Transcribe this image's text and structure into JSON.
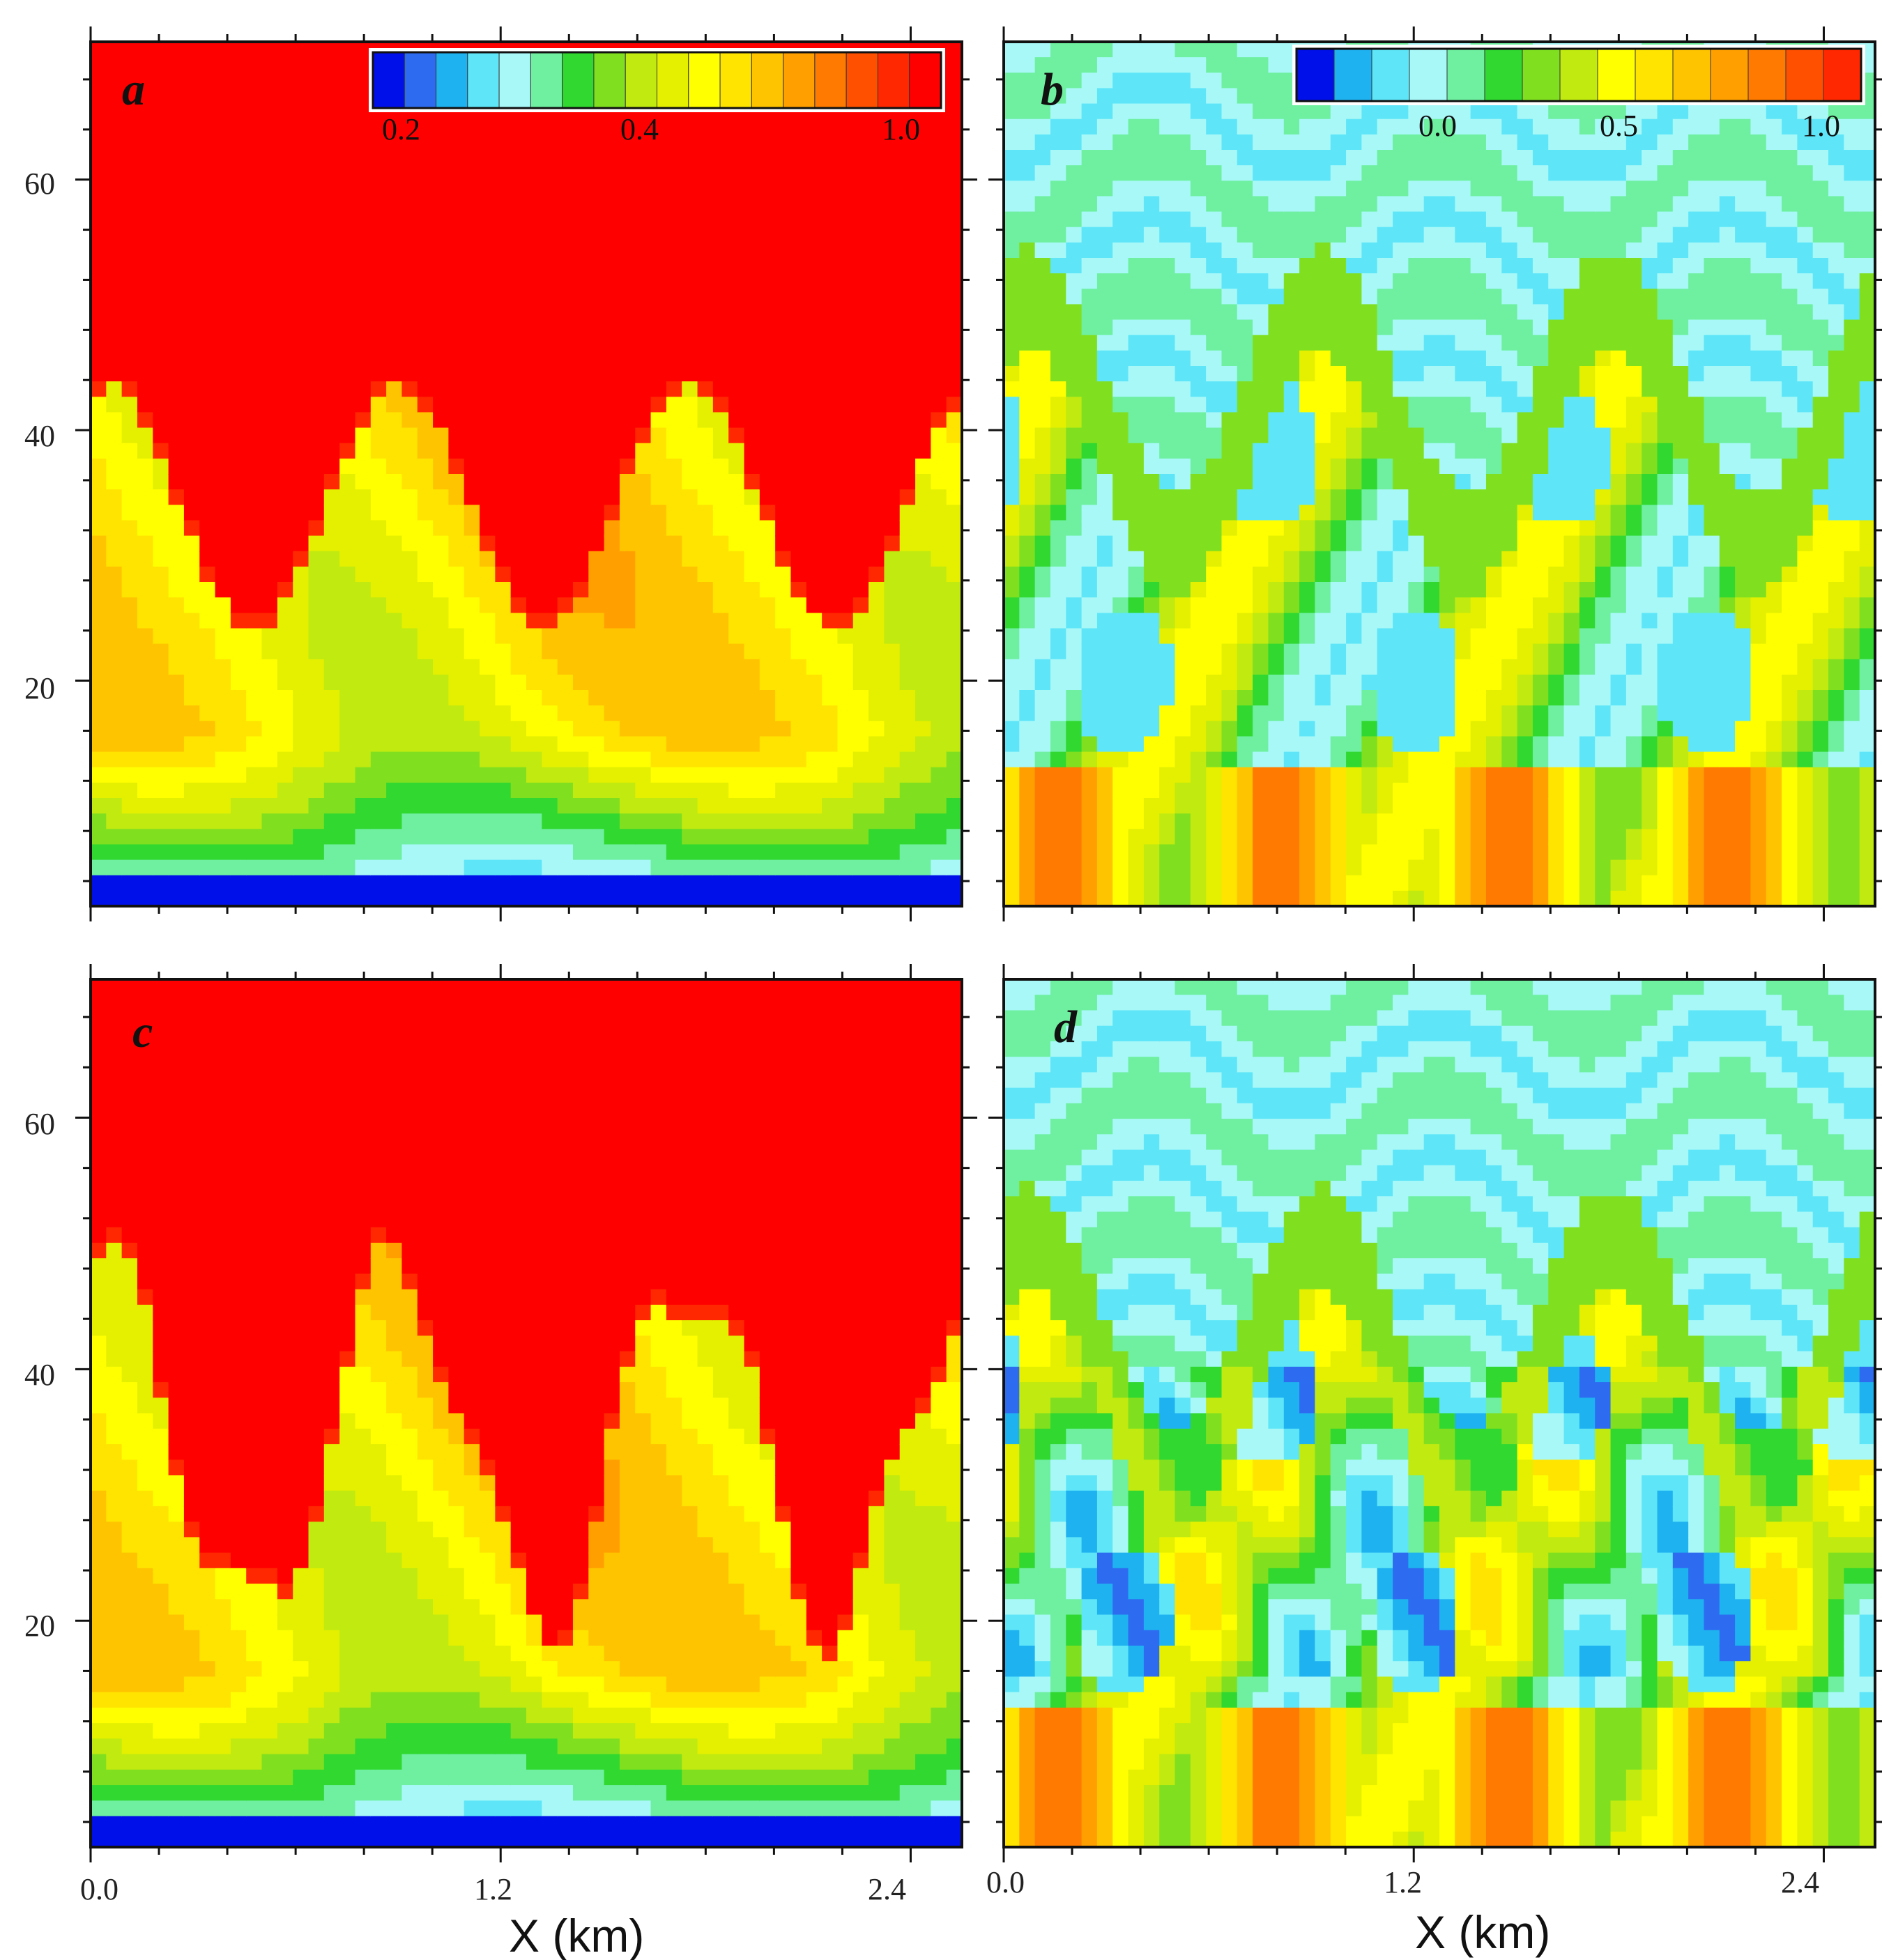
{
  "chart_data": [
    {
      "panel": "a",
      "type": "heatmap",
      "xlabel": "",
      "xlim": [
        0.0,
        2.55
      ],
      "ylim": [
        2,
        71
      ],
      "x_ticks": [
        "",
        "",
        ""
      ],
      "y_ticks": [
        "60",
        "40",
        "20"
      ],
      "y_tick_values": [
        60,
        40,
        20
      ],
      "colorbar": {
        "colors": [
          "#0010e8",
          "#2d6cf0",
          "#1fb2f0",
          "#5ee6f8",
          "#a8f8f8",
          "#6ef0a0",
          "#30d830",
          "#80e020",
          "#c0ea10",
          "#e4f000",
          "#ffff00",
          "#ffe400",
          "#ffc400",
          "#ffa000",
          "#ff7a00",
          "#ff5000",
          "#ff2800",
          "#ff0000"
        ],
        "tick_labels": [
          "0.2",
          "0.4",
          "1.0"
        ],
        "tick_values": [
          0.2,
          0.4,
          1.0
        ]
      },
      "field": {
        "kind": "a",
        "waves": 3,
        "amplitude": 10,
        "center": 32,
        "shear_tilt": 0
      }
    },
    {
      "panel": "b",
      "type": "heatmap",
      "xlabel": "",
      "xlim": [
        0.0,
        2.55
      ],
      "ylim": [
        2,
        71
      ],
      "x_ticks": [
        "",
        "",
        ""
      ],
      "y_ticks": [],
      "y_tick_values": [
        60,
        40,
        20
      ],
      "colorbar": {
        "colors": [
          "#0010e8",
          "#1fb2f0",
          "#5ee6f8",
          "#a8f8f8",
          "#6ef0a0",
          "#30d830",
          "#80e020",
          "#c0ea10",
          "#ffff00",
          "#ffe400",
          "#ffc400",
          "#ffa000",
          "#ff7a00",
          "#ff5000",
          "#ff2800"
        ],
        "tick_labels": [
          "0.0",
          "0.5",
          "1.0"
        ],
        "tick_values": [
          0.0,
          0.5,
          1.0
        ]
      },
      "field": {
        "kind": "b",
        "waves": 3,
        "amplitude": 12,
        "center": 30,
        "shear_tilt": 1
      }
    },
    {
      "panel": "c",
      "type": "heatmap",
      "xlabel": "X (km)",
      "xlim": [
        0.0,
        2.55
      ],
      "ylim": [
        2,
        71
      ],
      "x_ticks": [
        "0.0",
        "1.2",
        "2.4"
      ],
      "x_tick_values": [
        0.0,
        1.2,
        2.4
      ],
      "y_ticks": [
        "60",
        "40",
        "20"
      ],
      "y_tick_values": [
        60,
        40,
        20
      ],
      "field": {
        "kind": "c",
        "waves": 3,
        "amplitude": 16,
        "center": 30,
        "shear_tilt": 0
      }
    },
    {
      "panel": "d",
      "type": "heatmap",
      "xlabel": "X (km)",
      "xlim": [
        0.0,
        2.55
      ],
      "ylim": [
        2,
        71
      ],
      "x_ticks": [
        "0.0",
        "1.2",
        "2.4"
      ],
      "x_tick_values": [
        0.0,
        1.2,
        2.4
      ],
      "y_ticks": [],
      "y_tick_values": [
        60,
        40,
        20
      ],
      "field": {
        "kind": "d",
        "waves": 3,
        "amplitude": 14,
        "center": 28,
        "shear_tilt": 1
      }
    }
  ]
}
